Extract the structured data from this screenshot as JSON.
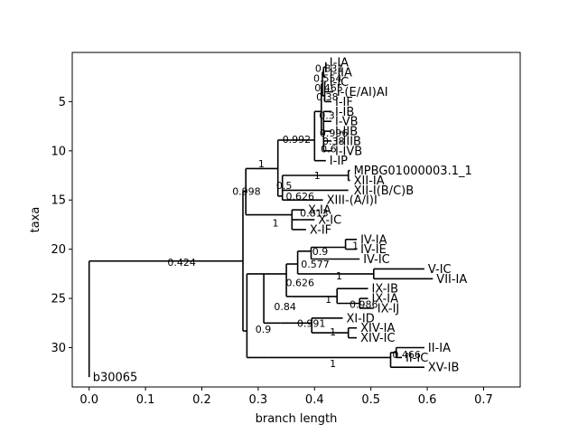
{
  "chart_data": {
    "type": "tree",
    "xlabel": "branch length",
    "ylabel": "taxa",
    "xlim": [
      -0.03,
      0.765
    ],
    "ylim": [
      34,
      0
    ],
    "xticks": [
      0.0,
      0.1,
      0.2,
      0.3,
      0.4,
      0.5,
      0.6,
      0.7
    ],
    "xtick_labels": [
      "0.0",
      "0.1",
      "0.2",
      "0.3",
      "0.4",
      "0.5",
      "0.6",
      "0.7"
    ],
    "yticks": [
      5,
      10,
      15,
      20,
      25,
      30
    ],
    "ytick_labels": [
      "5",
      "10",
      "15",
      "20",
      "25",
      "30"
    ],
    "leaves": [
      {
        "name": "I-IA",
        "x": 0.42,
        "y": 1
      },
      {
        "name": "I-IIA",
        "x": 0.42,
        "y": 2
      },
      {
        "name": "I-IC",
        "x": 0.42,
        "y": 3
      },
      {
        "name": "I-(E/AI)AI",
        "x": 0.433,
        "y": 4
      },
      {
        "name": "I-IF",
        "x": 0.43,
        "y": 5
      },
      {
        "name": "I-IB",
        "x": 0.43,
        "y": 6
      },
      {
        "name": "I-VB",
        "x": 0.43,
        "y": 7
      },
      {
        "name": "I-IIB",
        "x": 0.43,
        "y": 8
      },
      {
        "name": "I-IIIB",
        "x": 0.43,
        "y": 9
      },
      {
        "name": "I-IVB",
        "x": 0.43,
        "y": 10
      },
      {
        "name": "I-IP",
        "x": 0.42,
        "y": 11
      },
      {
        "name": "MPBG01000003.1_1",
        "x": 0.463,
        "y": 12
      },
      {
        "name": "XII-IA",
        "x": 0.463,
        "y": 13
      },
      {
        "name": "XII-I(B/C)B",
        "x": 0.463,
        "y": 14
      },
      {
        "name": "XIII-(A/I)I",
        "x": 0.415,
        "y": 15
      },
      {
        "name": "X-IA",
        "x": 0.382,
        "y": 16
      },
      {
        "name": "X-IC",
        "x": 0.4,
        "y": 17
      },
      {
        "name": "X-IF",
        "x": 0.385,
        "y": 18
      },
      {
        "name": "IV-IA",
        "x": 0.475,
        "y": 19
      },
      {
        "name": "IV-IE",
        "x": 0.475,
        "y": 20
      },
      {
        "name": "IV-IC",
        "x": 0.48,
        "y": 21
      },
      {
        "name": "V-IC",
        "x": 0.595,
        "y": 22
      },
      {
        "name": "VII-IA",
        "x": 0.61,
        "y": 23
      },
      {
        "name": "IX-IB",
        "x": 0.495,
        "y": 24
      },
      {
        "name": "IX-IA",
        "x": 0.495,
        "y": 25
      },
      {
        "name": "IX-IJ",
        "x": 0.505,
        "y": 26
      },
      {
        "name": "XI-ID",
        "x": 0.45,
        "y": 27
      },
      {
        "name": "XIV-IA",
        "x": 0.475,
        "y": 28
      },
      {
        "name": "XIV-IC",
        "x": 0.475,
        "y": 29
      },
      {
        "name": "II-IA",
        "x": 0.595,
        "y": 30
      },
      {
        "name": "II-IC",
        "x": 0.555,
        "y": 31
      },
      {
        "name": "XV-IB",
        "x": 0.595,
        "y": 32
      },
      {
        "name": "b30065",
        "x": 0.0,
        "y": 33
      }
    ],
    "support_labels": [
      {
        "text": "0.424",
        "x": 0.139,
        "y": 21.3
      },
      {
        "text": "0.998",
        "x": 0.254,
        "y": 14.1
      },
      {
        "text": "1",
        "x": 0.3,
        "y": 11.3
      },
      {
        "text": "0.992",
        "x": 0.343,
        "y": 8.8
      },
      {
        "text": "0.831",
        "x": 0.401,
        "y": 1.6
      },
      {
        "text": "0.554",
        "x": 0.398,
        "y": 2.6
      },
      {
        "text": "0.465",
        "x": 0.4,
        "y": 3.6
      },
      {
        "text": "0.38",
        "x": 0.403,
        "y": 4.5
      },
      {
        "text": "0.3",
        "x": 0.408,
        "y": 6.4
      },
      {
        "text": "0.996",
        "x": 0.409,
        "y": 8.2
      },
      {
        "text": "0.38",
        "x": 0.414,
        "y": 9.0
      },
      {
        "text": "0.6",
        "x": 0.411,
        "y": 9.8
      },
      {
        "text": "1",
        "x": 0.399,
        "y": 12.5
      },
      {
        "text": "0.5",
        "x": 0.332,
        "y": 13.5
      },
      {
        "text": "0.626",
        "x": 0.349,
        "y": 14.6
      },
      {
        "text": "0.813",
        "x": 0.374,
        "y": 16.3
      },
      {
        "text": "1",
        "x": 0.325,
        "y": 17.3
      },
      {
        "text": "0.9",
        "x": 0.396,
        "y": 20.2
      },
      {
        "text": "1",
        "x": 0.467,
        "y": 19.6
      },
      {
        "text": "0.577",
        "x": 0.376,
        "y": 21.5
      },
      {
        "text": "1",
        "x": 0.438,
        "y": 22.7
      },
      {
        "text": "0.626",
        "x": 0.349,
        "y": 23.4
      },
      {
        "text": "1",
        "x": 0.419,
        "y": 25.1
      },
      {
        "text": "0.986",
        "x": 0.462,
        "y": 25.6
      },
      {
        "text": "0.84",
        "x": 0.328,
        "y": 25.8
      },
      {
        "text": "0.991",
        "x": 0.369,
        "y": 27.5
      },
      {
        "text": "1",
        "x": 0.427,
        "y": 28.4
      },
      {
        "text": "0.9",
        "x": 0.295,
        "y": 28.1
      },
      {
        "text": "0.466",
        "x": 0.538,
        "y": 30.7
      },
      {
        "text": "1",
        "x": 0.427,
        "y": 31.6
      }
    ],
    "branches": [
      [
        0.0,
        21.2,
        0.0,
        33
      ],
      [
        0.0,
        33,
        0.0,
        33
      ],
      [
        0.0,
        21.2,
        0.273,
        21.2
      ],
      [
        0.273,
        14.1,
        0.273,
        28.3
      ],
      [
        0.273,
        14.1,
        0.278,
        14.1
      ],
      [
        0.273,
        28.3,
        0.28,
        28.3
      ],
      [
        0.278,
        11.8,
        0.278,
        16.5
      ],
      [
        0.278,
        11.8,
        0.335,
        11.8
      ],
      [
        0.278,
        16.5,
        0.285,
        16.5
      ],
      [
        0.335,
        8.9,
        0.335,
        14.6
      ],
      [
        0.335,
        8.9,
        0.4,
        8.9
      ],
      [
        0.335,
        14.6,
        0.343,
        14.6
      ],
      [
        0.4,
        6.0,
        0.4,
        11.0
      ],
      [
        0.4,
        6.0,
        0.412,
        6.0
      ],
      [
        0.4,
        11.0,
        0.42,
        11.0
      ],
      [
        0.412,
        3.2,
        0.412,
        8.3
      ],
      [
        0.412,
        3.2,
        0.414,
        3.2
      ],
      [
        0.412,
        8.3,
        0.416,
        8.3
      ],
      [
        0.414,
        2.0,
        0.414,
        4.4
      ],
      [
        0.414,
        2.0,
        0.416,
        2.0
      ],
      [
        0.414,
        4.4,
        0.418,
        4.4
      ],
      [
        0.416,
        1.5,
        0.416,
        2.5
      ],
      [
        0.416,
        1.5,
        0.42,
        1.5
      ],
      [
        0.416,
        2.5,
        0.42,
        2.5
      ],
      [
        0.42,
        1.0,
        0.42,
        2.0
      ],
      [
        0.418,
        3.0,
        0.418,
        5.0
      ],
      [
        0.418,
        3.0,
        0.42,
        3.0
      ],
      [
        0.418,
        4.0,
        0.433,
        4.0
      ],
      [
        0.418,
        5.0,
        0.43,
        5.0
      ],
      [
        0.416,
        6.0,
        0.416,
        10.0
      ],
      [
        0.416,
        6.0,
        0.43,
        6.0
      ],
      [
        0.416,
        7.0,
        0.43,
        7.0
      ],
      [
        0.416,
        8.0,
        0.43,
        8.0
      ],
      [
        0.416,
        9.0,
        0.43,
        9.0
      ],
      [
        0.416,
        10.0,
        0.43,
        10.0
      ],
      [
        0.343,
        12.5,
        0.343,
        15.0
      ],
      [
        0.343,
        12.5,
        0.46,
        12.5
      ],
      [
        0.343,
        14.0,
        0.46,
        14.0
      ],
      [
        0.343,
        15.0,
        0.415,
        15.0
      ],
      [
        0.46,
        12.0,
        0.46,
        13.0
      ],
      [
        0.46,
        12.0,
        0.463,
        12.0
      ],
      [
        0.46,
        13.0,
        0.463,
        13.0
      ],
      [
        0.285,
        16.5,
        0.285,
        16.5
      ],
      [
        0.285,
        16.5,
        0.36,
        16.5
      ],
      [
        0.36,
        16.0,
        0.36,
        18.0
      ],
      [
        0.36,
        16.0,
        0.382,
        16.0
      ],
      [
        0.36,
        17.0,
        0.375,
        17.0
      ],
      [
        0.375,
        17.0,
        0.4,
        17.0
      ],
      [
        0.36,
        18.0,
        0.385,
        18.0
      ],
      [
        0.28,
        22.5,
        0.28,
        31.0
      ],
      [
        0.28,
        22.5,
        0.31,
        22.5
      ],
      [
        0.28,
        31.0,
        0.318,
        31.0
      ],
      [
        0.31,
        22.5,
        0.31,
        27.5
      ],
      [
        0.31,
        22.5,
        0.35,
        22.5
      ],
      [
        0.31,
        27.5,
        0.34,
        27.5
      ],
      [
        0.35,
        21.5,
        0.35,
        24.8
      ],
      [
        0.35,
        21.5,
        0.37,
        21.5
      ],
      [
        0.35,
        24.8,
        0.36,
        24.8
      ],
      [
        0.37,
        20.2,
        0.37,
        22.5
      ],
      [
        0.37,
        20.2,
        0.394,
        20.2
      ],
      [
        0.37,
        22.5,
        0.505,
        22.5
      ],
      [
        0.394,
        19.8,
        0.394,
        21.0
      ],
      [
        0.394,
        19.8,
        0.455,
        19.8
      ],
      [
        0.394,
        21.0,
        0.48,
        21.0
      ],
      [
        0.455,
        19.0,
        0.455,
        20.0
      ],
      [
        0.455,
        19.0,
        0.475,
        19.0
      ],
      [
        0.455,
        20.0,
        0.475,
        20.0
      ],
      [
        0.505,
        22.0,
        0.505,
        23.0
      ],
      [
        0.505,
        22.0,
        0.595,
        22.0
      ],
      [
        0.505,
        23.0,
        0.61,
        23.0
      ],
      [
        0.36,
        24.8,
        0.36,
        24.8
      ],
      [
        0.36,
        24.8,
        0.44,
        24.8
      ],
      [
        0.44,
        24.0,
        0.44,
        25.5
      ],
      [
        0.44,
        24.0,
        0.495,
        24.0
      ],
      [
        0.44,
        25.5,
        0.48,
        25.5
      ],
      [
        0.48,
        25.0,
        0.48,
        26.0
      ],
      [
        0.48,
        25.0,
        0.495,
        25.0
      ],
      [
        0.48,
        26.0,
        0.505,
        26.0
      ],
      [
        0.34,
        27.5,
        0.34,
        27.5
      ],
      [
        0.34,
        27.5,
        0.395,
        27.5
      ],
      [
        0.395,
        27.0,
        0.395,
        28.5
      ],
      [
        0.395,
        27.0,
        0.45,
        27.0
      ],
      [
        0.395,
        28.5,
        0.46,
        28.5
      ],
      [
        0.46,
        28.0,
        0.46,
        29.0
      ],
      [
        0.46,
        28.0,
        0.475,
        28.0
      ],
      [
        0.46,
        29.0,
        0.475,
        29.0
      ],
      [
        0.318,
        31.0,
        0.318,
        31.0
      ],
      [
        0.318,
        31.0,
        0.535,
        31.0
      ],
      [
        0.535,
        30.5,
        0.535,
        32.0
      ],
      [
        0.535,
        30.5,
        0.545,
        30.5
      ],
      [
        0.535,
        32.0,
        0.595,
        32.0
      ],
      [
        0.545,
        30.0,
        0.545,
        31.0
      ],
      [
        0.545,
        30.0,
        0.595,
        30.0
      ],
      [
        0.545,
        31.0,
        0.555,
        31.0
      ]
    ]
  }
}
